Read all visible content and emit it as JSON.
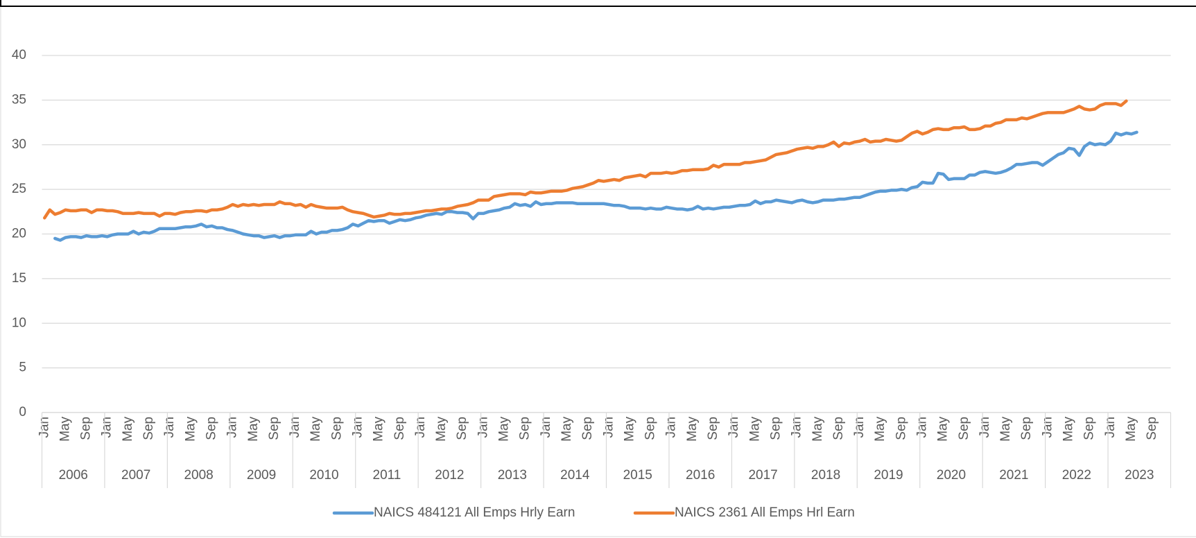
{
  "chart_data": {
    "type": "line",
    "categories": [
      "Jan",
      null,
      null,
      null,
      "May",
      null,
      null,
      null,
      "Sep",
      null,
      null,
      null,
      "Jan",
      null,
      null,
      null,
      "May",
      null,
      null,
      null,
      "Sep",
      null,
      null,
      null,
      "Jan",
      null,
      null,
      null,
      "May",
      null,
      null,
      null,
      "Sep",
      null,
      null,
      null,
      "Jan",
      null,
      null,
      null,
      "May",
      null,
      null,
      null,
      "Sep",
      null,
      null,
      null,
      "Jan",
      null,
      null,
      null,
      "May",
      null,
      null,
      null,
      "Sep",
      null,
      null,
      null,
      "Jan",
      null,
      null,
      null,
      "May",
      null,
      null,
      null,
      "Sep",
      null,
      null,
      null,
      "Jan",
      null,
      null,
      null,
      "May",
      null,
      null,
      null,
      "Sep",
      null,
      null,
      null,
      "Jan",
      null,
      null,
      null,
      "May",
      null,
      null,
      null,
      "Sep",
      null,
      null,
      null,
      "Jan",
      null,
      null,
      null,
      "May",
      null,
      null,
      null,
      "Sep",
      null,
      null,
      null,
      "Jan",
      null,
      null,
      null,
      "May",
      null,
      null,
      null,
      "Sep",
      null,
      null,
      null,
      "Jan",
      null,
      null,
      null,
      "May",
      null,
      null,
      null,
      "Sep",
      null,
      null,
      null,
      "Jan",
      null,
      null,
      null,
      "May",
      null,
      null,
      null,
      "Sep",
      null,
      null,
      null,
      "Jan",
      null,
      null,
      null,
      "May",
      null,
      null,
      null,
      "Sep",
      null,
      null,
      null,
      "Jan",
      null,
      null,
      null,
      "May",
      null,
      null,
      null,
      "Sep",
      null,
      null,
      null,
      "Jan",
      null,
      null,
      null,
      "May",
      null,
      null,
      null,
      "Sep",
      null,
      null,
      null,
      "Jan",
      null,
      null,
      null,
      "May",
      null,
      null,
      null,
      "Sep",
      null,
      null,
      null,
      "Jan",
      null,
      null,
      null,
      "May",
      null,
      null,
      null,
      "Sep",
      null,
      null,
      null,
      "Jan",
      null,
      null,
      null,
      "May",
      null,
      null,
      null,
      "Sep",
      null,
      null,
      null
    ],
    "years": [
      "2006",
      "2007",
      "2008",
      "2009",
      "2010",
      "2011",
      "2012",
      "2013",
      "2014",
      "2015",
      "2016",
      "2017",
      "2018",
      "2019",
      "2020",
      "2021",
      "2022",
      "2023"
    ],
    "series": [
      {
        "name": "NAICS 484121 All Emps Hrly Earn",
        "color": "#5b9bd5",
        "values": [
          null,
          null,
          19.5,
          19.3,
          19.6,
          19.7,
          19.7,
          19.6,
          19.8,
          19.7,
          19.7,
          19.8,
          19.7,
          19.9,
          20.0,
          20.0,
          20.0,
          20.3,
          20.0,
          20.2,
          20.1,
          20.3,
          20.6,
          20.6,
          20.6,
          20.6,
          20.7,
          20.8,
          20.8,
          20.9,
          21.1,
          20.8,
          20.9,
          20.7,
          20.7,
          20.5,
          20.4,
          20.2,
          20.0,
          19.9,
          19.8,
          19.8,
          19.6,
          19.7,
          19.8,
          19.6,
          19.8,
          19.8,
          19.9,
          19.9,
          19.9,
          20.3,
          20.0,
          20.2,
          20.2,
          20.4,
          20.4,
          20.5,
          20.7,
          21.1,
          20.9,
          21.2,
          21.5,
          21.4,
          21.5,
          21.5,
          21.2,
          21.4,
          21.6,
          21.5,
          21.6,
          21.8,
          21.9,
          22.1,
          22.2,
          22.3,
          22.2,
          22.5,
          22.5,
          22.4,
          22.4,
          22.3,
          21.7,
          22.3,
          22.3,
          22.5,
          22.6,
          22.7,
          22.9,
          23.0,
          23.4,
          23.2,
          23.3,
          23.1,
          23.6,
          23.3,
          23.4,
          23.4,
          23.5,
          23.5,
          23.5,
          23.5,
          23.4,
          23.4,
          23.4,
          23.4,
          23.4,
          23.4,
          23.3,
          23.2,
          23.2,
          23.1,
          22.9,
          22.9,
          22.9,
          22.8,
          22.9,
          22.8,
          22.8,
          23.0,
          22.9,
          22.8,
          22.8,
          22.7,
          22.8,
          23.1,
          22.8,
          22.9,
          22.8,
          22.9,
          23.0,
          23.0,
          23.1,
          23.2,
          23.2,
          23.3,
          23.7,
          23.4,
          23.6,
          23.6,
          23.8,
          23.7,
          23.6,
          23.5,
          23.7,
          23.8,
          23.6,
          23.5,
          23.6,
          23.8,
          23.8,
          23.8,
          23.9,
          23.9,
          24.0,
          24.1,
          24.1,
          24.3,
          24.5,
          24.7,
          24.8,
          24.8,
          24.9,
          24.9,
          25.0,
          24.9,
          25.2,
          25.3,
          25.8,
          25.7,
          25.7,
          26.8,
          26.7,
          26.1,
          26.2,
          26.2,
          26.2,
          26.6,
          26.6,
          26.9,
          27.0,
          26.9,
          26.8,
          26.9,
          27.1,
          27.4,
          27.8,
          27.8,
          27.9,
          28.0,
          28.0,
          27.7,
          28.1,
          28.5,
          28.9,
          29.1,
          29.6,
          29.5,
          28.8,
          29.8,
          30.2,
          30.0,
          30.1,
          30.0,
          30.4,
          31.3,
          31.1,
          31.3,
          31.2,
          31.4,
          null,
          null,
          null,
          null,
          null,
          null
        ]
      },
      {
        "name": "NAICS 2361 All Emps Hrl Earn",
        "color": "#ed7d31",
        "values": [
          21.8,
          22.7,
          22.2,
          22.4,
          22.7,
          22.6,
          22.6,
          22.7,
          22.7,
          22.4,
          22.7,
          22.7,
          22.6,
          22.6,
          22.5,
          22.3,
          22.3,
          22.3,
          22.4,
          22.3,
          22.3,
          22.3,
          22.0,
          22.3,
          22.3,
          22.2,
          22.4,
          22.5,
          22.5,
          22.6,
          22.6,
          22.5,
          22.7,
          22.7,
          22.8,
          23.0,
          23.3,
          23.1,
          23.3,
          23.2,
          23.3,
          23.2,
          23.3,
          23.3,
          23.3,
          23.6,
          23.4,
          23.4,
          23.2,
          23.3,
          23.0,
          23.3,
          23.1,
          23.0,
          22.9,
          22.9,
          22.9,
          23.0,
          22.7,
          22.5,
          22.4,
          22.3,
          22.1,
          21.9,
          22.0,
          22.1,
          22.3,
          22.2,
          22.2,
          22.3,
          22.3,
          22.4,
          22.5,
          22.6,
          22.6,
          22.7,
          22.8,
          22.8,
          22.9,
          23.1,
          23.2,
          23.3,
          23.5,
          23.8,
          23.8,
          23.8,
          24.2,
          24.3,
          24.4,
          24.5,
          24.5,
          24.5,
          24.4,
          24.7,
          24.6,
          24.6,
          24.7,
          24.8,
          24.8,
          24.8,
          24.9,
          25.1,
          25.2,
          25.3,
          25.5,
          25.7,
          26.0,
          25.9,
          26.0,
          26.1,
          26.0,
          26.3,
          26.4,
          26.5,
          26.6,
          26.4,
          26.8,
          26.8,
          26.8,
          26.9,
          26.8,
          26.9,
          27.1,
          27.1,
          27.2,
          27.2,
          27.2,
          27.3,
          27.7,
          27.5,
          27.8,
          27.8,
          27.8,
          27.8,
          28.0,
          28.0,
          28.1,
          28.2,
          28.3,
          28.6,
          28.9,
          29.0,
          29.1,
          29.3,
          29.5,
          29.6,
          29.7,
          29.6,
          29.8,
          29.8,
          30.0,
          30.3,
          29.8,
          30.2,
          30.1,
          30.3,
          30.4,
          30.6,
          30.3,
          30.4,
          30.4,
          30.6,
          30.5,
          30.4,
          30.5,
          30.9,
          31.3,
          31.5,
          31.2,
          31.4,
          31.7,
          31.8,
          31.7,
          31.7,
          31.9,
          31.9,
          32.0,
          31.7,
          31.7,
          31.8,
          32.1,
          32.1,
          32.4,
          32.5,
          32.8,
          32.8,
          32.8,
          33.0,
          32.9,
          33.1,
          33.3,
          33.5,
          33.6,
          33.6,
          33.6,
          33.6,
          33.8,
          34.0,
          34.3,
          34.0,
          33.9,
          34.0,
          34.4,
          34.6,
          34.6,
          34.6,
          34.4,
          34.9,
          null,
          null,
          null,
          null,
          null,
          null,
          null,
          null
        ]
      }
    ],
    "ylim": [
      0,
      40
    ],
    "yticks": [
      0,
      5,
      10,
      15,
      20,
      25,
      30,
      35,
      40
    ],
    "grid": true,
    "legend": "bottom"
  }
}
